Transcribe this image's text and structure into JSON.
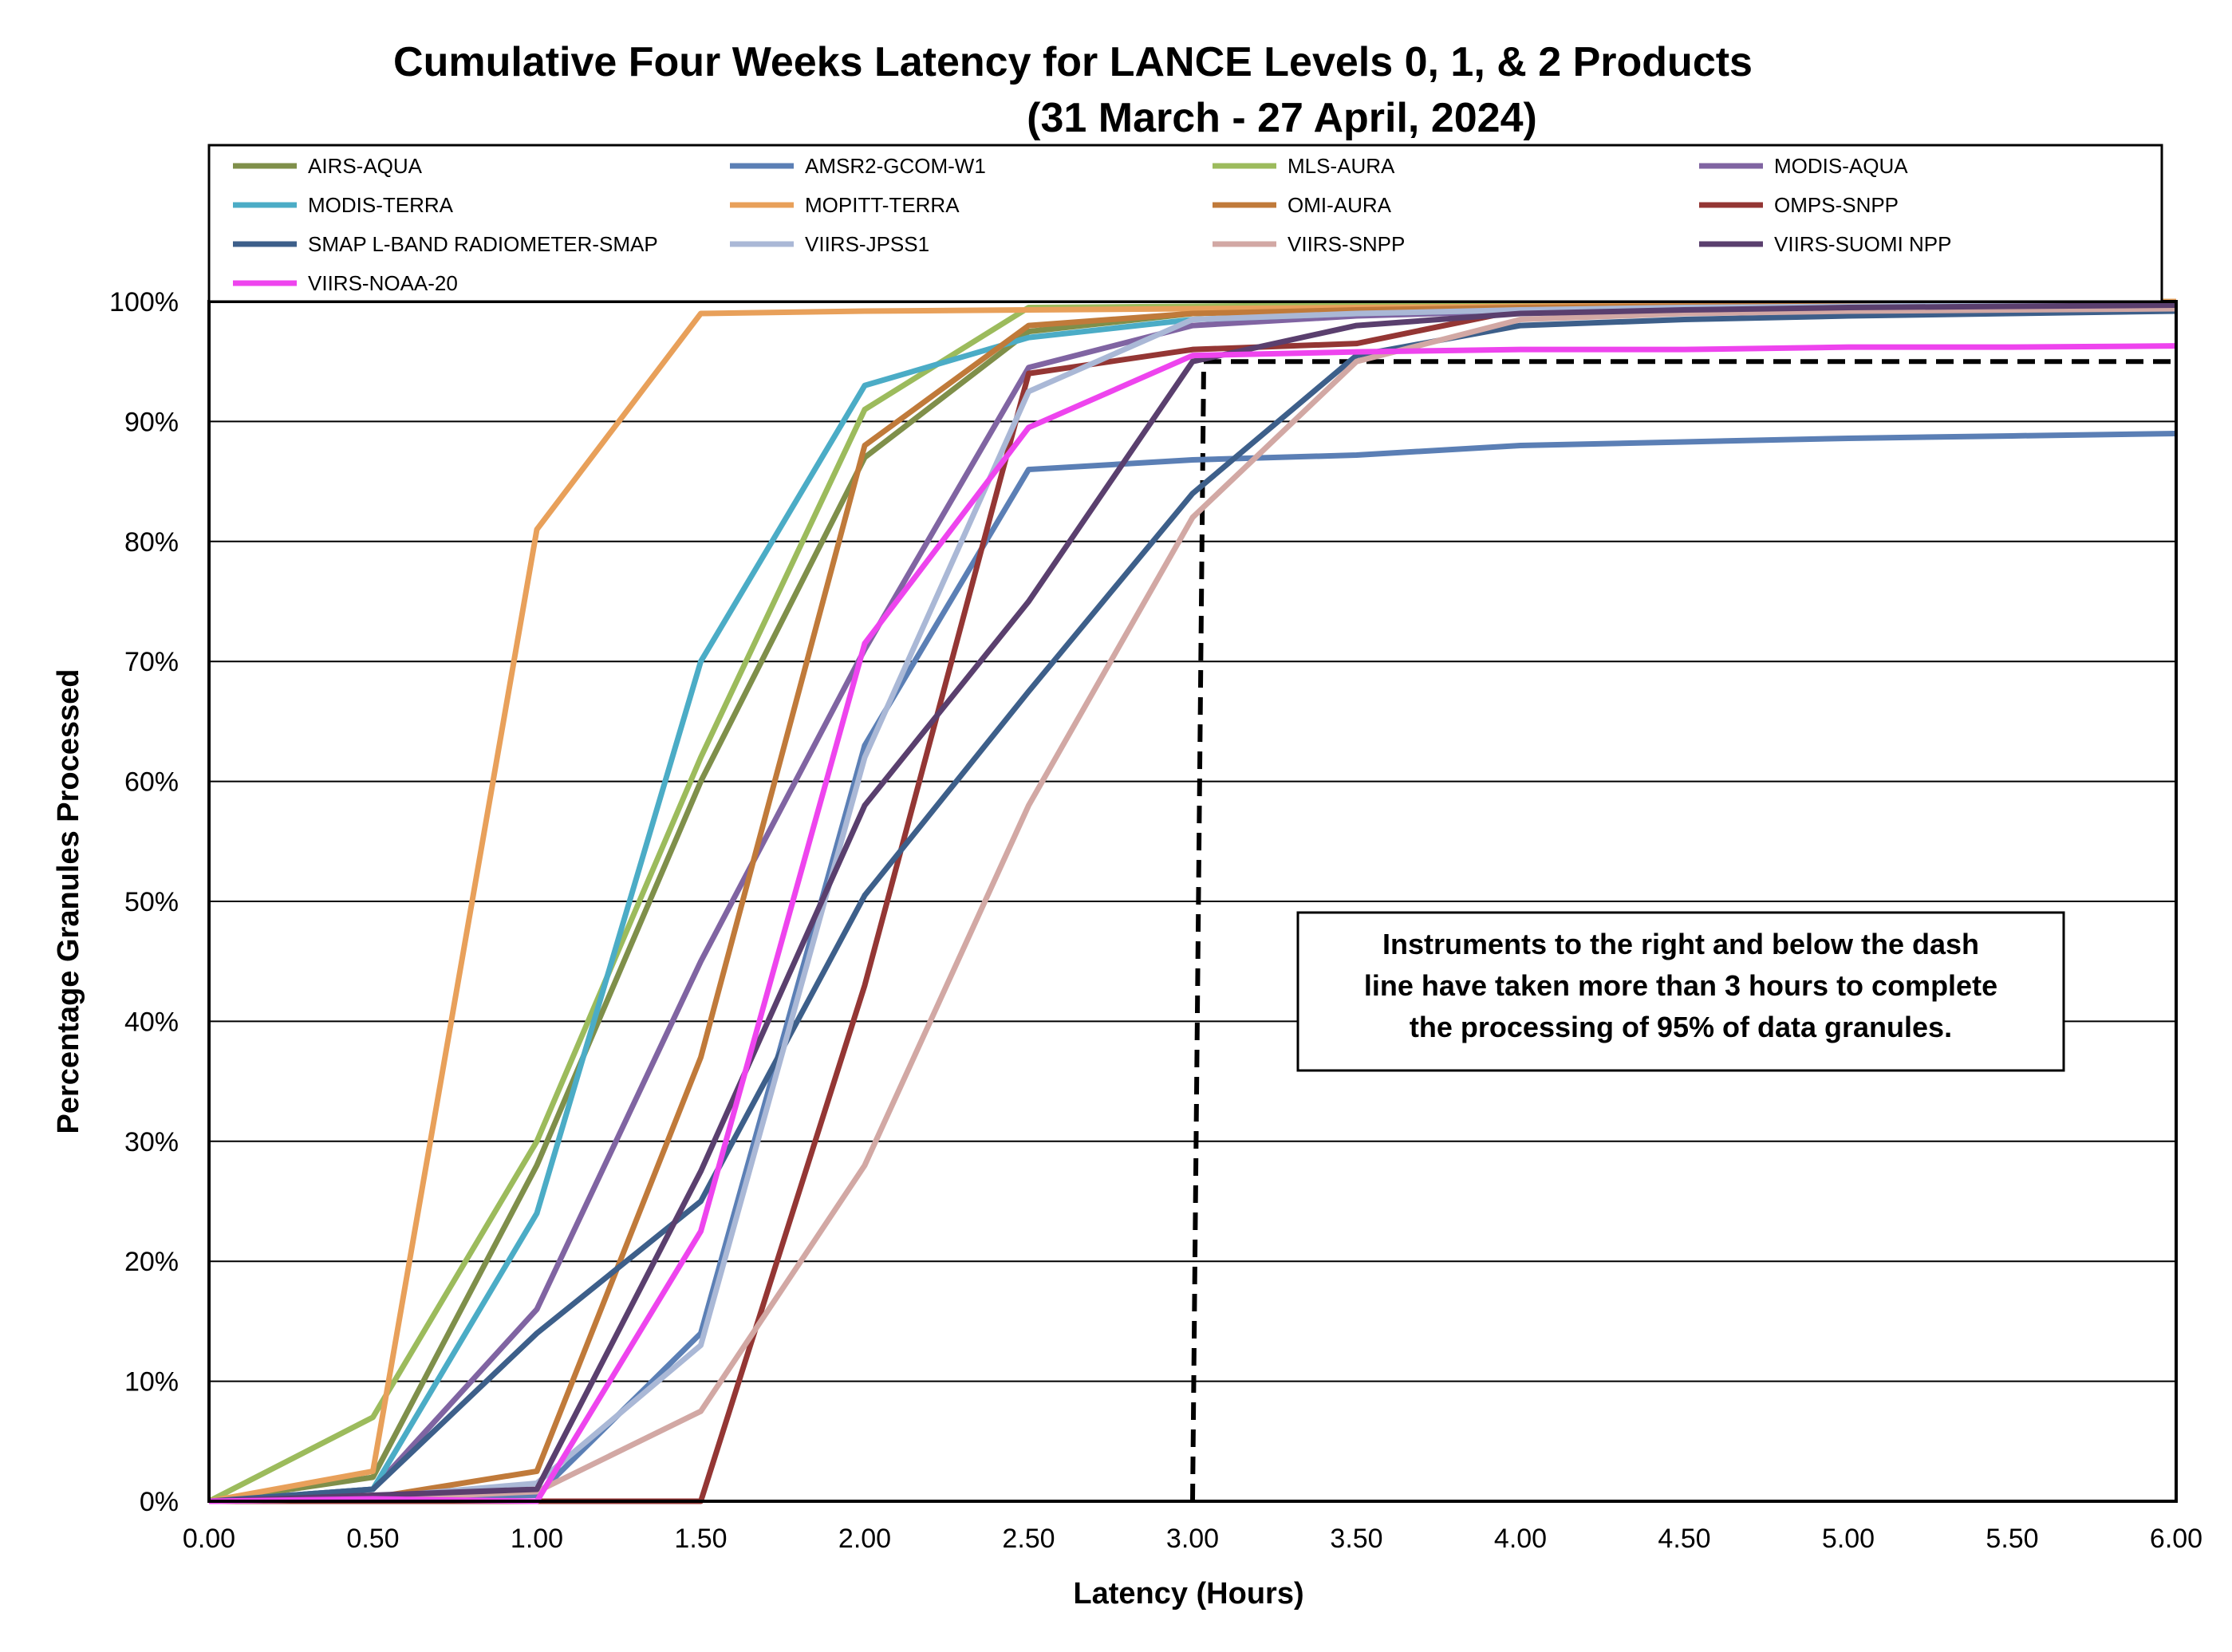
{
  "chart_data": {
    "type": "line",
    "title": "Cumulative Four Weeks Latency  for LANCE Levels 0, 1, & 2 Products",
    "subtitle": "(31  March   -  27  April,  2024)",
    "xlabel": "Latency (Hours)",
    "ylabel": "Percentage Granules Processed",
    "xlim": [
      0,
      6
    ],
    "ylim": [
      0,
      100
    ],
    "x_ticks": [
      "0.00",
      "0.50",
      "1.00",
      "1.50",
      "2.00",
      "2.50",
      "3.00",
      "3.50",
      "4.00",
      "4.50",
      "5.00",
      "5.50",
      "6.00"
    ],
    "y_ticks": [
      "0%",
      "10%",
      "20%",
      "30%",
      "40%",
      "50%",
      "60%",
      "70%",
      "80%",
      "90%",
      "100%"
    ],
    "grid": true,
    "legend_position": "top",
    "annotation": {
      "lines": [
        "Instruments to the right and below the dash",
        "line have taken more than 3 hours to complete",
        "the processing of 95% of data granules."
      ]
    },
    "reference_line": {
      "x": 3.0,
      "y": 95
    },
    "x": [
      0,
      0.5,
      1,
      1.5,
      2,
      2.5,
      3,
      3.5,
      4,
      4.5,
      5,
      5.5,
      6
    ],
    "series": [
      {
        "name": "AIRS-AQUA",
        "color": "#7f8f4a",
        "values": [
          0,
          2,
          28,
          60,
          87,
          97.5,
          99,
          99.5,
          99.7,
          99.8,
          99.9,
          99.9,
          100
        ]
      },
      {
        "name": "AMSR2-GCOM-W1",
        "color": "#5b7fb5",
        "values": [
          0,
          0.3,
          0.5,
          14,
          63,
          86,
          86.8,
          87.2,
          88,
          88.3,
          88.6,
          88.8,
          89
        ]
      },
      {
        "name": "MLS-AURA",
        "color": "#9cbb5c",
        "values": [
          0,
          7,
          30,
          62,
          91,
          99.5,
          99.6,
          99.7,
          99.8,
          99.9,
          99.9,
          100,
          100
        ]
      },
      {
        "name": "MODIS-AQUA",
        "color": "#8064a2",
        "values": [
          0,
          1,
          16,
          45,
          71,
          94.5,
          98,
          98.8,
          99.2,
          99.4,
          99.5,
          99.6,
          99.7
        ]
      },
      {
        "name": "MODIS-TERRA",
        "color": "#4bacc6",
        "values": [
          0,
          1,
          24,
          70,
          93,
          97,
          98.5,
          99,
          99.3,
          99.5,
          99.6,
          99.7,
          99.8
        ]
      },
      {
        "name": "MOPITT-TERRA",
        "color": "#e8a05a",
        "values": [
          0,
          2.5,
          81,
          99,
          99.2,
          99.3,
          99.4,
          99.5,
          99.6,
          99.7,
          99.8,
          99.9,
          100
        ]
      },
      {
        "name": "OMI-AURA",
        "color": "#c07a3a",
        "values": [
          0,
          0.3,
          2.5,
          37,
          88,
          98,
          99,
          99.3,
          99.5,
          99.6,
          99.7,
          99.8,
          99.9
        ]
      },
      {
        "name": "OMPS-SNPP",
        "color": "#943634",
        "values": [
          0,
          0,
          0,
          0,
          43,
          94,
          96,
          96.5,
          99.3,
          99.4,
          99.5,
          99.5,
          99.6
        ]
      },
      {
        "name": "SMAP L-BAND RADIOMETER-SMAP",
        "color": "#3d5f8a",
        "values": [
          0,
          1,
          14,
          25,
          50.5,
          67.5,
          84,
          95.5,
          98,
          98.5,
          98.8,
          99,
          99.2
        ]
      },
      {
        "name": "VIIRS-JPSS1",
        "color": "#aab8d6",
        "values": [
          0,
          0.3,
          1.5,
          13,
          62,
          92.5,
          98.5,
          99,
          99.3,
          99.5,
          99.6,
          99.7,
          99.8
        ]
      },
      {
        "name": "VIIRS-SNPP",
        "color": "#d2a8a4",
        "values": [
          0,
          0.2,
          0.8,
          7.5,
          28,
          58,
          82,
          95,
          98.5,
          99,
          99.2,
          99.3,
          99.4
        ]
      },
      {
        "name": "VIIRS-SUOMI NPP",
        "color": "#5a3f6e",
        "values": [
          0,
          0.5,
          1,
          27.5,
          58,
          75,
          95,
          98,
          99,
          99.3,
          99.5,
          99.6,
          99.7
        ]
      },
      {
        "name": "VIIRS-NOAA-20",
        "color": "#ee44ee",
        "values": [
          0,
          0.2,
          0,
          22.5,
          71.5,
          89.5,
          95.5,
          95.8,
          96,
          96,
          96.2,
          96.2,
          96.3
        ]
      }
    ]
  }
}
